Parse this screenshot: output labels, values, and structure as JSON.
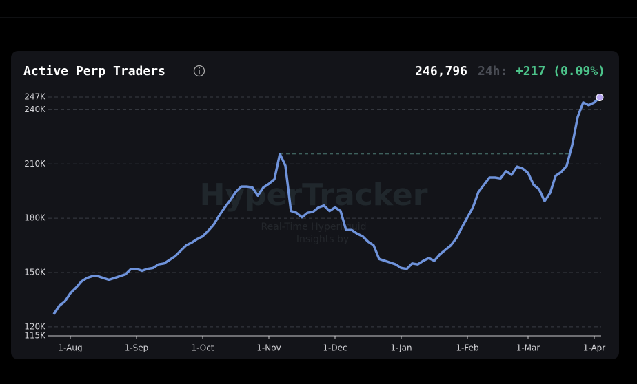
{
  "header": {
    "title": "Active Perp Traders",
    "current": "246,796",
    "period": "24h:",
    "change": "+217 (0.09%)"
  },
  "watermark": {
    "brand": "HyperTracker",
    "line1": "Real-Time Hyperliquid",
    "line2": "Insights by"
  },
  "chart_data": {
    "type": "line",
    "categories": [
      null,
      null,
      null,
      "1-Aug",
      null,
      null,
      null,
      null,
      null,
      null,
      null,
      null,
      null,
      null,
      null,
      "1-Sep",
      null,
      null,
      null,
      null,
      null,
      null,
      null,
      null,
      null,
      null,
      null,
      "1-Oct",
      null,
      null,
      null,
      null,
      null,
      null,
      null,
      null,
      null,
      null,
      null,
      "1-Nov",
      null,
      null,
      null,
      null,
      null,
      null,
      null,
      null,
      null,
      null,
      null,
      "1-Dec",
      null,
      null,
      null,
      null,
      null,
      null,
      null,
      null,
      null,
      null,
      null,
      "1-Jan",
      null,
      null,
      null,
      null,
      null,
      null,
      null,
      null,
      null,
      null,
      null,
      "1-Feb",
      null,
      null,
      null,
      null,
      null,
      null,
      null,
      null,
      null,
      null,
      "1-Mar",
      null,
      null,
      null,
      null,
      null,
      null,
      null,
      null,
      null,
      null,
      null,
      "1-Apr",
      null
    ],
    "series": [
      {
        "name": "Active Perp Traders",
        "color": "#6f93db",
        "values": [
          127,
          131.6,
          134,
          138.5,
          141.5,
          145,
          147,
          148,
          148,
          147,
          146,
          147,
          148,
          149,
          152,
          152,
          151,
          152,
          152.5,
          154.5,
          155,
          157,
          159,
          162,
          165,
          166.5,
          168.5,
          170,
          173,
          176.5,
          181.5,
          186,
          190,
          194.5,
          197.5,
          197.5,
          197,
          192.5,
          197,
          199,
          201.5,
          215.5,
          209,
          184,
          183,
          180.5,
          183,
          183.5,
          186,
          187,
          184,
          186,
          184,
          173.5,
          173.5,
          171.5,
          170,
          167,
          165,
          157.5,
          156.5,
          155.5,
          154.5,
          152.5,
          152,
          155,
          154.5,
          156.5,
          158,
          156.5,
          160,
          162.5,
          165,
          169,
          175,
          180.5,
          186,
          194.5,
          198.5,
          202.5,
          202.5,
          202,
          206,
          204,
          208.5,
          207.5,
          205,
          198.5,
          196,
          189.5,
          194,
          203.5,
          205.5,
          209,
          220.5,
          236,
          244,
          242.5,
          244,
          246.796
        ]
      }
    ],
    "ylim": [
      115,
      247
    ],
    "yticks": [
      {
        "value": 115,
        "label": "115K"
      },
      {
        "value": 120,
        "label": "120K"
      },
      {
        "value": 150,
        "label": "150K"
      },
      {
        "value": 180,
        "label": "180K"
      },
      {
        "value": 210,
        "label": "210K"
      },
      {
        "value": 240,
        "label": "240K"
      },
      {
        "value": 247,
        "label": "247K"
      }
    ],
    "grid": true
  }
}
